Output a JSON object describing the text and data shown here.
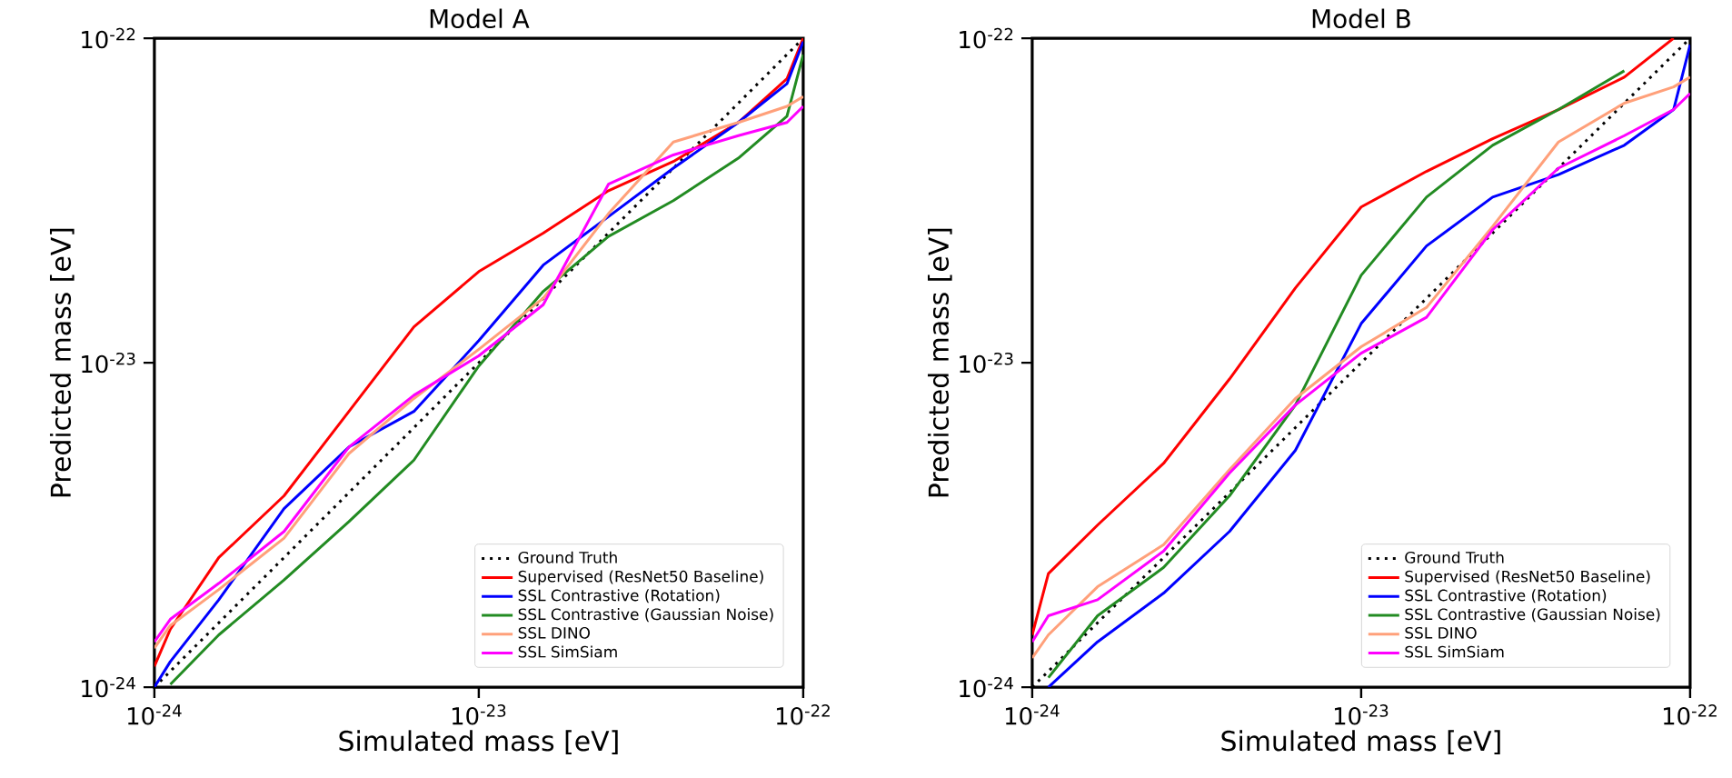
{
  "chart_data": [
    {
      "type": "line",
      "title": "Model A",
      "xlabel": "Simulated mass [eV]",
      "ylabel": "Predicted mass [eV]",
      "log": "xy",
      "legend": "bottom right",
      "xlim": [
        1e-24,
        1e-22
      ],
      "ylim": [
        1e-24,
        1e-22
      ],
      "xticks": [
        {
          "value": 1e-24,
          "label": "10$^{-24}$"
        },
        {
          "value": 1e-23,
          "label": "10$^{-23}$"
        },
        {
          "value": 1e-22,
          "label": "10$^{-22}$"
        }
      ],
      "yticks": [
        {
          "value": 1e-24,
          "label": "10$^{-24}$"
        },
        {
          "value": 1e-23,
          "label": "10$^{-23}$"
        },
        {
          "value": 1e-22,
          "label": "10$^{-22}$"
        }
      ],
      "x": [
        1e-24,
        1.12e-24,
        1.58e-24,
        2.51e-24,
        3.98e-24,
        6.31e-24,
        1e-23,
        1.58e-23,
        2.51e-23,
        3.98e-23,
        6.31e-23,
        8.91e-23,
        1e-22
      ],
      "series": [
        {
          "name": "Ground Truth",
          "color": "#000000",
          "line_style": "dotted",
          "values": [
            1e-24,
            1.12e-24,
            1.58e-24,
            2.51e-24,
            3.98e-24,
            6.31e-24,
            1e-23,
            1.58e-23,
            2.51e-23,
            3.98e-23,
            6.31e-23,
            8.91e-23,
            1e-22
          ]
        },
        {
          "name": "Supervised (ResNet50 Baseline)",
          "color": "#ff0000",
          "values": [
            1.16e-24,
            1.51e-24,
            2.51e-24,
            3.89e-24,
            7.08e-24,
            1.29e-23,
            1.91e-23,
            2.51e-23,
            3.39e-23,
            4.17e-23,
            5.5e-23,
            7.5e-23,
            1e-22
          ]
        },
        {
          "name": "SSL Contrastive (Rotation)",
          "color": "#0000ff",
          "values": [
            1e-24,
            1.2e-24,
            1.86e-24,
            3.55e-24,
            5.5e-24,
            7.08e-24,
            1.17e-23,
            2e-23,
            2.82e-23,
            3.98e-23,
            5.5e-23,
            7.24e-23,
            9.77e-23
          ]
        },
        {
          "name": "SSL Contrastive (Gaussian Noise)",
          "color": "#228b22",
          "values": [
            null,
            1.02e-24,
            1.45e-24,
            2.14e-24,
            3.24e-24,
            5.01e-24,
            9.77e-24,
            1.66e-23,
            2.45e-23,
            3.16e-23,
            4.27e-23,
            5.75e-23,
            8.91e-23
          ]
        },
        {
          "name": "SSL DINO",
          "color": "#ffa07a",
          "values": [
            1.32e-24,
            1.55e-24,
            2e-24,
            2.88e-24,
            5.25e-24,
            7.76e-24,
            1.1e-23,
            1.58e-23,
            2.88e-23,
            4.79e-23,
            5.5e-23,
            6.17e-23,
            6.61e-23
          ]
        },
        {
          "name": "SSL SimSiam",
          "color": "#ff00ff",
          "values": [
            1.38e-24,
            1.62e-24,
            2.09e-24,
            3.02e-24,
            5.5e-24,
            7.94e-24,
            1.05e-23,
            1.51e-23,
            3.55e-23,
            4.37e-23,
            5.01e-23,
            5.5e-23,
            6.17e-23
          ]
        }
      ]
    },
    {
      "type": "line",
      "title": "Model B",
      "xlabel": "Simulated mass [eV]",
      "ylabel": "Predicted mass [eV]",
      "log": "xy",
      "legend": "bottom right",
      "xlim": [
        1e-24,
        1e-22
      ],
      "ylim": [
        1e-24,
        1e-22
      ],
      "xticks": [
        {
          "value": 1e-24,
          "label": "10$^{-24}$"
        },
        {
          "value": 1e-23,
          "label": "10$^{-23}$"
        },
        {
          "value": 1e-22,
          "label": "10$^{-22}$"
        }
      ],
      "yticks": [
        {
          "value": 1e-24,
          "label": "10$^{-24}$"
        },
        {
          "value": 1e-23,
          "label": "10$^{-23}$"
        },
        {
          "value": 1e-22,
          "label": "10$^{-22}$"
        }
      ],
      "x": [
        1e-24,
        1.12e-24,
        1.58e-24,
        2.51e-24,
        3.98e-24,
        6.31e-24,
        1e-23,
        1.58e-23,
        2.51e-23,
        3.98e-23,
        6.31e-23,
        8.91e-23,
        1e-22
      ],
      "series": [
        {
          "name": "Ground Truth",
          "color": "#000000",
          "line_style": "dotted",
          "values": [
            1e-24,
            1.12e-24,
            1.58e-24,
            2.51e-24,
            3.98e-24,
            6.31e-24,
            1e-23,
            1.58e-23,
            2.51e-23,
            3.98e-23,
            6.31e-23,
            8.91e-23,
            1e-22
          ]
        },
        {
          "name": "Supervised (ResNet50 Baseline)",
          "color": "#ff0000",
          "values": [
            1.45e-24,
            2.24e-24,
            3.16e-24,
            4.9e-24,
            8.91e-24,
            1.7e-23,
            3.02e-23,
            3.89e-23,
            4.9e-23,
            6.03e-23,
            7.59e-23,
            1e-22,
            null
          ]
        },
        {
          "name": "SSL Contrastive (Rotation)",
          "color": "#0000ff",
          "values": [
            null,
            1e-24,
            1.38e-24,
            1.95e-24,
            3.02e-24,
            5.37e-24,
            1.32e-23,
            2.29e-23,
            3.24e-23,
            3.8e-23,
            4.68e-23,
            6.03e-23,
            9.55e-23
          ]
        },
        {
          "name": "SSL Contrastive (Gaussian Noise)",
          "color": "#228b22",
          "values": [
            null,
            1.07e-24,
            1.66e-24,
            2.34e-24,
            3.89e-24,
            7.41e-24,
            1.86e-23,
            3.24e-23,
            4.68e-23,
            6.03e-23,
            7.94e-23,
            null,
            null
          ]
        },
        {
          "name": "SSL DINO",
          "color": "#ffa07a",
          "values": [
            1.23e-24,
            1.45e-24,
            2.04e-24,
            2.75e-24,
            4.68e-24,
            7.76e-24,
            1.12e-23,
            1.48e-23,
            2.63e-23,
            4.79e-23,
            6.31e-23,
            7.08e-23,
            7.59e-23
          ]
        },
        {
          "name": "SSL SimSiam",
          "color": "#ff00ff",
          "values": [
            1.38e-24,
            1.66e-24,
            1.86e-24,
            2.63e-24,
            4.57e-24,
            7.41e-24,
            1.07e-23,
            1.38e-23,
            2.57e-23,
            3.98e-23,
            5.01e-23,
            6.03e-23,
            6.76e-23
          ]
        }
      ]
    }
  ]
}
